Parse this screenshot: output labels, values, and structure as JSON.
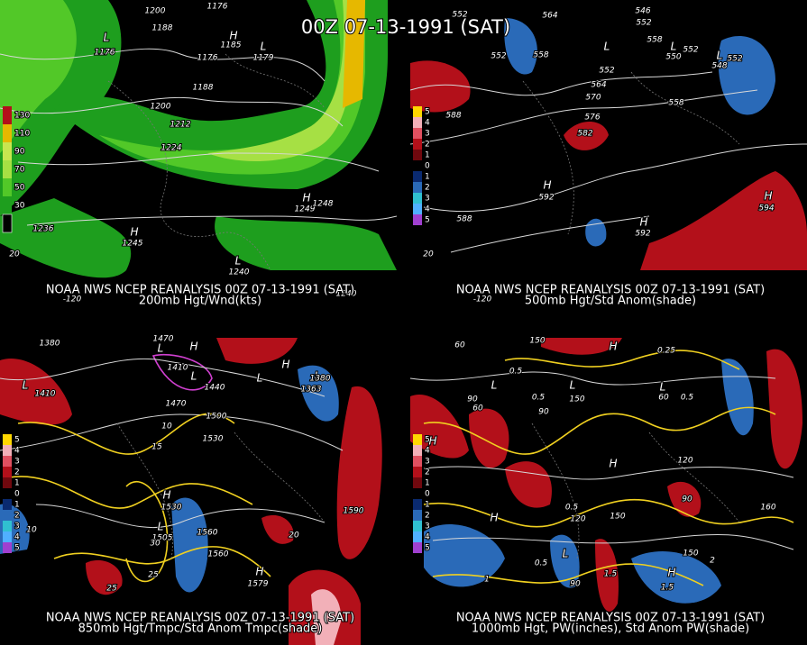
{
  "title": "00Z 07-13-1991 (SAT)",
  "panels": [
    {
      "caption": "NOAA NWS NCEP REANALYSIS 00Z 07-13-1991 (SAT)",
      "subtitle": "200mb Hgt/Wnd(kts)",
      "legend": [
        "130",
        "110",
        "90",
        "70",
        "50",
        "30"
      ],
      "labels": [
        "1200",
        "1176",
        "1188",
        "L",
        "1176",
        "H",
        "1185",
        "1176",
        "L",
        "1179",
        "1188",
        "1200",
        "1212",
        "1224",
        "1236",
        "H",
        "1249",
        "1248",
        "H",
        "1245",
        "L",
        "1240",
        "1240",
        "20",
        "-120"
      ]
    },
    {
      "caption": "NOAA NWS NCEP REANALYSIS 00Z 07-13-1991 (SAT)",
      "subtitle": "500mb Hgt/Std Anom(shade)",
      "legend": [
        "5",
        "4",
        "3",
        "2",
        "1",
        "0",
        "1",
        "2",
        "3",
        "4",
        "5"
      ],
      "labels": [
        "552",
        "564",
        "546",
        "552",
        "552",
        "558",
        "L",
        "552",
        "558",
        "L",
        "550",
        "552",
        "L",
        "548",
        "552",
        "564",
        "570",
        "576",
        "582",
        "558",
        "588",
        "H",
        "592",
        "588",
        "H",
        "592",
        "H",
        "594",
        "20",
        "-120"
      ]
    },
    {
      "caption": "NOAA NWS NCEP REANALYSIS 00Z 07-13-1991 (SAT)",
      "subtitle": "850mb Hgt/Tmpc/Std Anom Tmpc(shade)",
      "legend": [
        "5",
        "4",
        "3",
        "2",
        "1",
        "0",
        "1",
        "2",
        "3",
        "4",
        "5"
      ],
      "labels": [
        "1380",
        "1470",
        "L",
        "H",
        "1410",
        "1440",
        "L",
        "1410",
        "L",
        "1470",
        "1500",
        "1530",
        "L",
        "H",
        "L",
        "1380",
        "1363",
        "H",
        "1530",
        "L",
        "1505",
        "1560",
        "1560",
        "1590",
        "H",
        "1579",
        "10",
        "15",
        "10",
        "30",
        "25",
        "25",
        "20"
      ]
    },
    {
      "caption": "NOAA NWS NCEP REANALYSIS 00Z 07-13-1991 (SAT)",
      "subtitle": "1000mb Hgt, PW(inches), Std Anom PW(shade)",
      "legend": [
        "5",
        "4",
        "3",
        "2",
        "1",
        "0",
        "1",
        "2",
        "3",
        "4",
        "5"
      ],
      "labels": [
        "60",
        "150",
        "L",
        "90",
        "60",
        "L",
        "150",
        "90",
        "L",
        "60",
        "H",
        "0.5",
        "0.5",
        "0.25",
        "0.5",
        "H",
        "H",
        "H",
        "120",
        "90",
        "150",
        "160",
        "120",
        "150",
        "0.5",
        "0.5",
        "1",
        "1.5",
        "90",
        "H",
        "2",
        "1.5",
        "L"
      ]
    }
  ]
}
